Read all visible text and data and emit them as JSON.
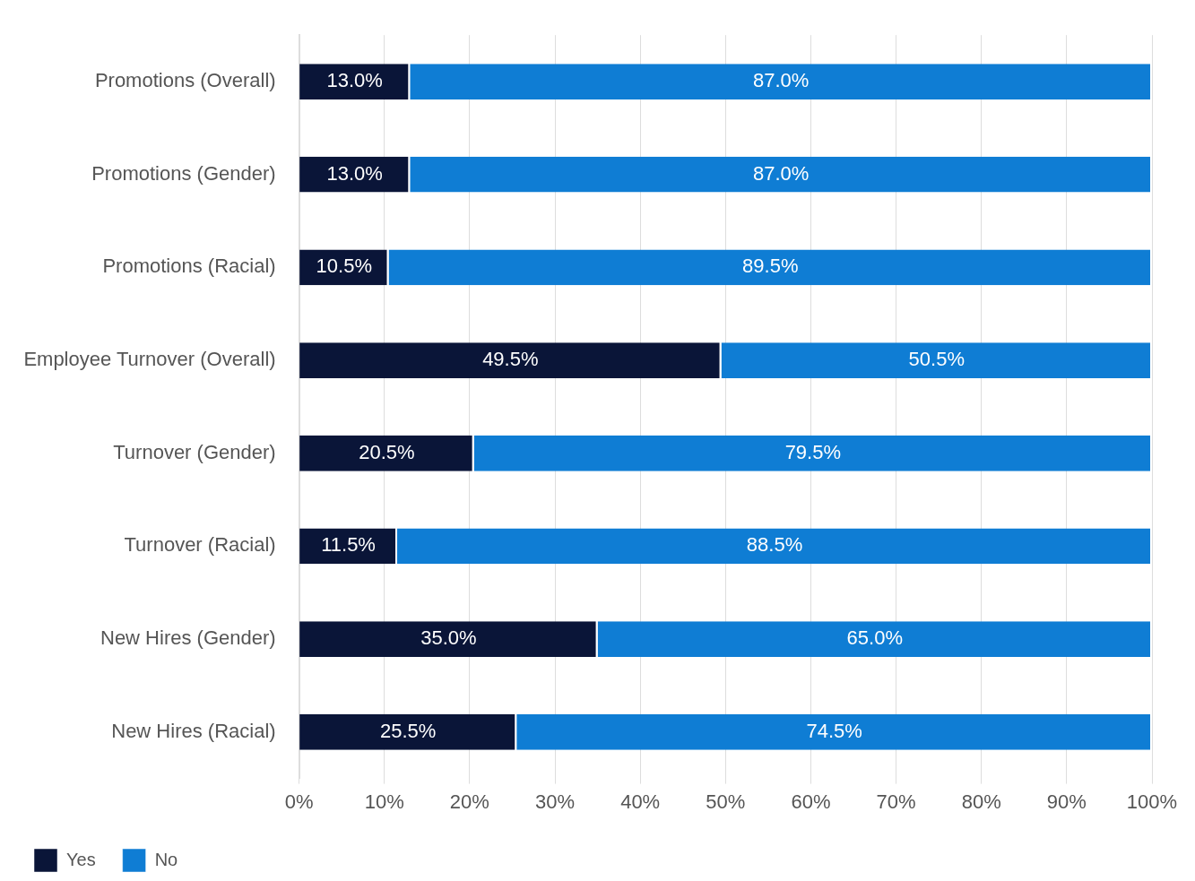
{
  "chart_data": {
    "type": "bar",
    "orientation": "horizontal",
    "stacked": true,
    "categories": [
      "Promotions (Overall)",
      "Promotions (Gender)",
      "Promotions (Racial)",
      "Employee Turnover (Overall)",
      "Turnover (Gender)",
      "Turnover (Racial)",
      "New Hires (Gender)",
      "New Hires (Racial)"
    ],
    "series": [
      {
        "name": "Yes",
        "color": "#0a1538",
        "values": [
          13.0,
          13.0,
          10.5,
          49.5,
          20.5,
          11.5,
          35.0,
          25.5
        ],
        "value_labels": [
          "13.0%",
          "13.0%",
          "10.5%",
          "49.5%",
          "20.5%",
          "11.5%",
          "35.0%",
          "25.5%"
        ]
      },
      {
        "name": "No",
        "color": "#0f7dd4",
        "values": [
          87.0,
          87.0,
          89.5,
          50.5,
          79.5,
          88.5,
          65.0,
          74.5
        ],
        "value_labels": [
          "87.0%",
          "87.0%",
          "89.5%",
          "50.5%",
          "79.5%",
          "88.5%",
          "65.0%",
          "74.5%"
        ]
      }
    ],
    "xlim": [
      0,
      100
    ],
    "xticks": [
      {
        "value": 0,
        "label": "0%"
      },
      {
        "value": 10,
        "label": "10%"
      },
      {
        "value": 20,
        "label": "20%"
      },
      {
        "value": 30,
        "label": "30%"
      },
      {
        "value": 40,
        "label": "40%"
      },
      {
        "value": 50,
        "label": "50%"
      },
      {
        "value": 60,
        "label": "60%"
      },
      {
        "value": 70,
        "label": "70%"
      },
      {
        "value": 80,
        "label": "80%"
      },
      {
        "value": 90,
        "label": "90%"
      },
      {
        "value": 100,
        "label": "100%"
      }
    ],
    "grid": "x",
    "legend": "bottom left"
  }
}
